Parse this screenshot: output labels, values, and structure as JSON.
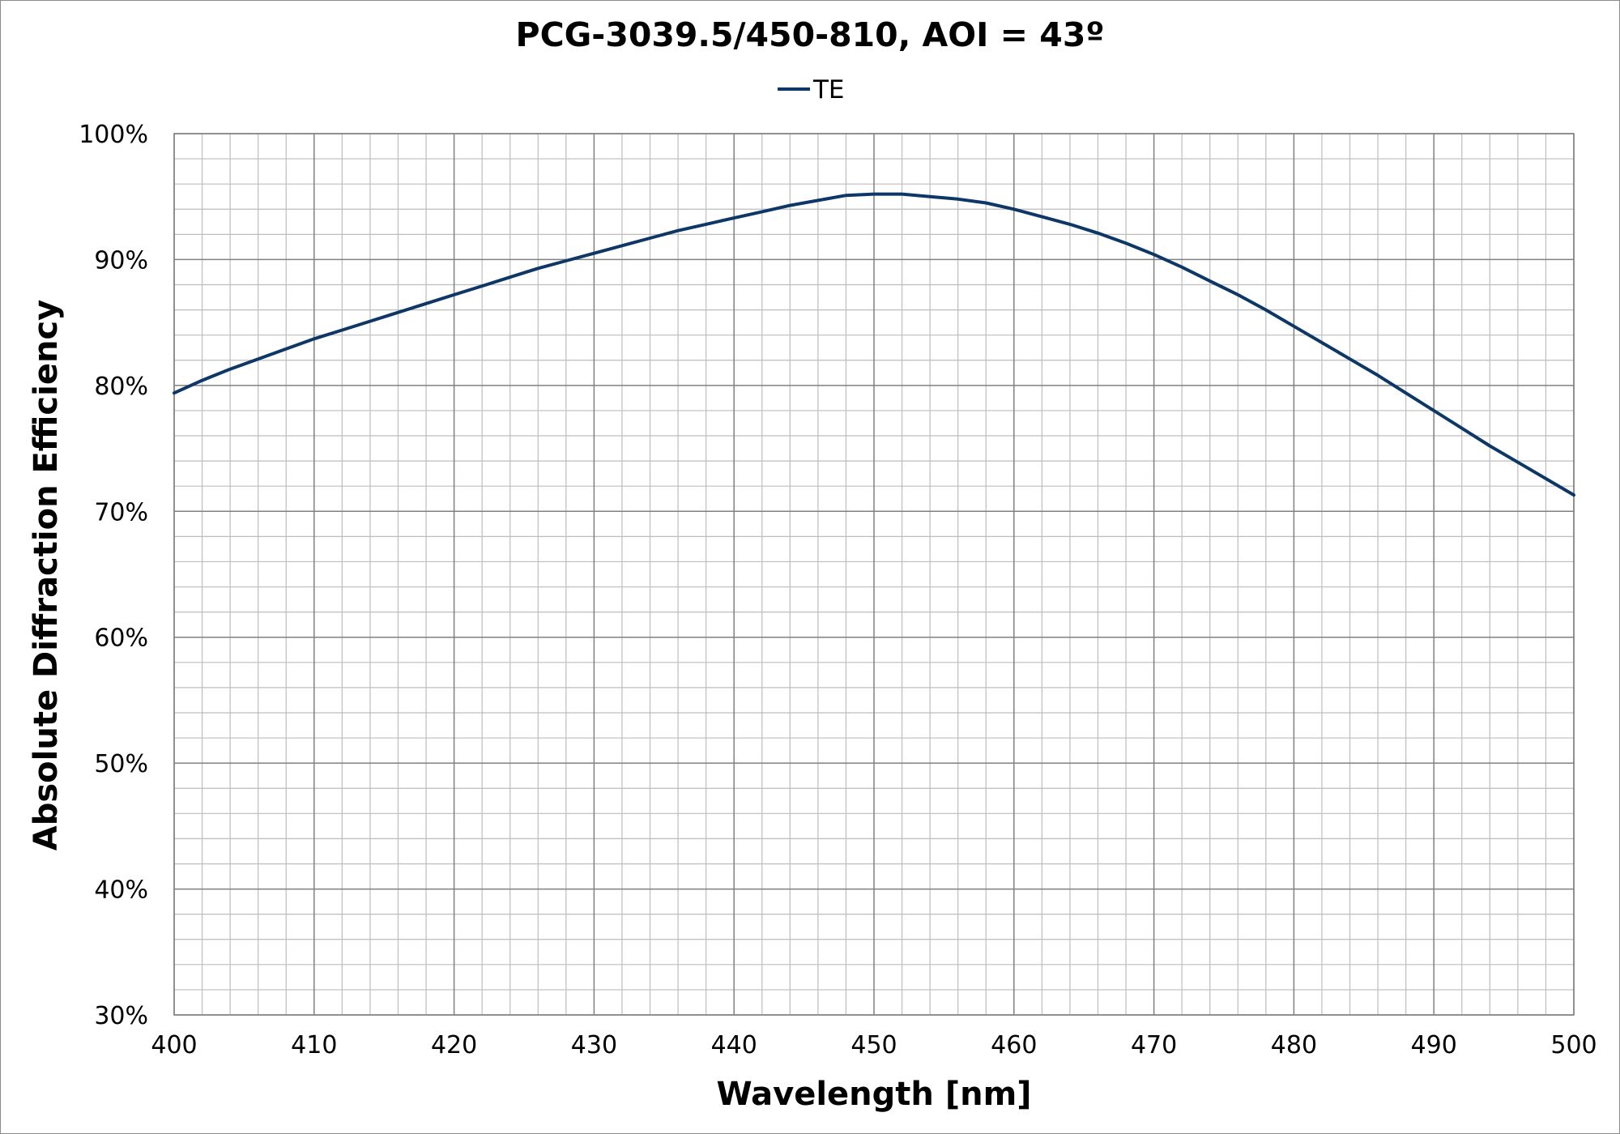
{
  "chart_data": {
    "type": "line",
    "title": "PCG-3039.5/450-810, AOI = 43º",
    "xlabel": "Wavelength [nm]",
    "ylabel": "Absolute Diffraction Efficiency",
    "xlim": [
      400,
      500
    ],
    "ylim": [
      30,
      100
    ],
    "x_ticks": [
      "400",
      "410",
      "420",
      "430",
      "440",
      "450",
      "460",
      "470",
      "480",
      "490",
      "500"
    ],
    "y_ticks": [
      "30%",
      "40%",
      "50%",
      "60%",
      "70%",
      "80%",
      "90%",
      "100%"
    ],
    "grid": true,
    "legend_position": "top-center",
    "series": [
      {
        "name": "TE",
        "color": "#0d3766",
        "x": [
          400,
          402,
          404,
          406,
          408,
          410,
          412,
          414,
          416,
          418,
          420,
          422,
          424,
          426,
          428,
          430,
          432,
          434,
          436,
          438,
          440,
          442,
          444,
          446,
          448,
          450,
          452,
          454,
          456,
          458,
          460,
          462,
          464,
          466,
          468,
          470,
          472,
          474,
          476,
          478,
          480,
          482,
          484,
          486,
          488,
          490,
          492,
          494,
          496,
          498,
          500
        ],
        "y": [
          79.4,
          80.4,
          81.3,
          82.1,
          82.9,
          83.7,
          84.4,
          85.1,
          85.8,
          86.5,
          87.2,
          87.9,
          88.6,
          89.3,
          89.9,
          90.5,
          91.1,
          91.7,
          92.3,
          92.8,
          93.3,
          93.8,
          94.3,
          94.7,
          95.1,
          95.2,
          95.2,
          95.0,
          94.8,
          94.5,
          94.0,
          93.4,
          92.8,
          92.1,
          91.3,
          90.4,
          89.4,
          88.3,
          87.2,
          86.0,
          84.7,
          83.4,
          82.1,
          80.8,
          79.4,
          78.0,
          76.6,
          75.2,
          73.9,
          72.6,
          71.3
        ]
      }
    ]
  }
}
